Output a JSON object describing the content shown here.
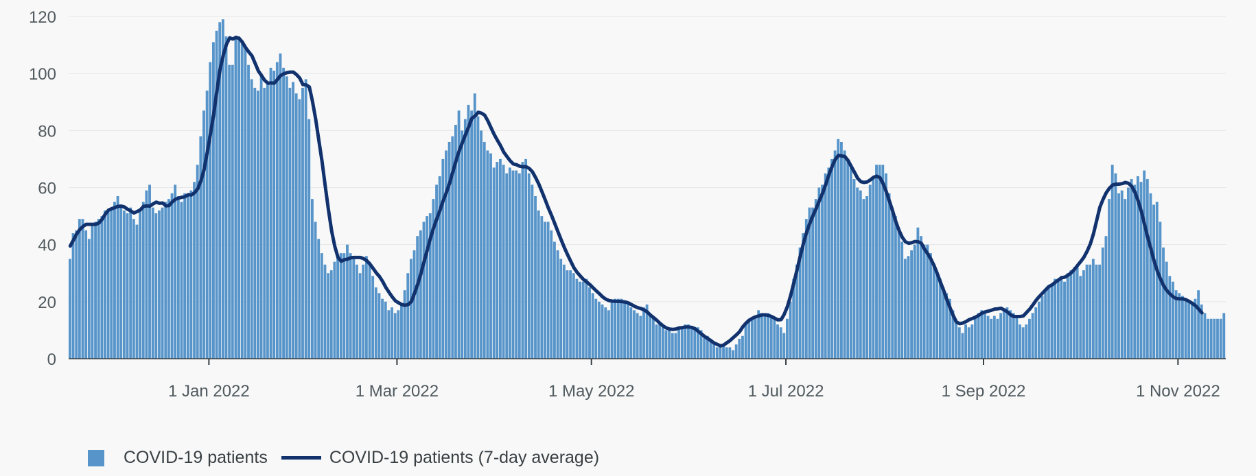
{
  "colors": {
    "bar": "#5694ca",
    "line": "#12326e",
    "grid": "#e6e6e6",
    "axis": "#505a5f",
    "background": "#f8f8f8"
  },
  "legend": {
    "bars": "COVID-19 patients",
    "line": "COVID-19 patients (7-day average)"
  },
  "chart_data": {
    "type": "bar",
    "title": "",
    "xlabel": "",
    "ylabel": "",
    "x_start": "2021-11-18",
    "x_ticks": [
      {
        "date": "2022-01-01",
        "label": "1 Jan 2022"
      },
      {
        "date": "2022-03-01",
        "label": "1 Mar 2022"
      },
      {
        "date": "2022-05-01",
        "label": "1 May 2022"
      },
      {
        "date": "2022-07-01",
        "label": "1 Jul 2022"
      },
      {
        "date": "2022-09-01",
        "label": "1 Sep 2022"
      },
      {
        "date": "2022-11-01",
        "label": "1 Nov 2022"
      }
    ],
    "ylim": [
      0,
      120
    ],
    "yticks": [
      0,
      20,
      40,
      60,
      80,
      100,
      120
    ],
    "grid": true,
    "legend_position": "bottom-left",
    "series": [
      {
        "name": "COVID-19 patients",
        "kind": "bar",
        "values": [
          35,
          44,
          45,
          49,
          49,
          45,
          42,
          47,
          48,
          49,
          50,
          52,
          52,
          53,
          55,
          57,
          53,
          52,
          51,
          53,
          49,
          47,
          52,
          55,
          59,
          61,
          53,
          51,
          52,
          53,
          55,
          56,
          58,
          61,
          57,
          55,
          58,
          57,
          59,
          62,
          68,
          78,
          87,
          94,
          104,
          111,
          115,
          118,
          119,
          113,
          103,
          103,
          113,
          113,
          111,
          109,
          103,
          98,
          95,
          94,
          99,
          95,
          97,
          102,
          101,
          104,
          107,
          102,
          99,
          95,
          97,
          93,
          91,
          95,
          98,
          84,
          56,
          48,
          42,
          37,
          33,
          30,
          31,
          34,
          36,
          37,
          37,
          40,
          37,
          36,
          33,
          30,
          33,
          36,
          34,
          29,
          25,
          23,
          21,
          20,
          17,
          18,
          16,
          17,
          19,
          24,
          30,
          35,
          38,
          43,
          45,
          48,
          50,
          51,
          56,
          61,
          64,
          70,
          73,
          76,
          78,
          82,
          87,
          80,
          84,
          89,
          87,
          93,
          85,
          80,
          76,
          73,
          72,
          67,
          69,
          70,
          68,
          65,
          67,
          66,
          66,
          65,
          69,
          70,
          65,
          61,
          57,
          52,
          50,
          48,
          48,
          45,
          41,
          38,
          35,
          33,
          31,
          31,
          30,
          28,
          27,
          27,
          28,
          25,
          23,
          21,
          20,
          19,
          18,
          17,
          20,
          21,
          21,
          21,
          20,
          20,
          18,
          17,
          16,
          15,
          18,
          19,
          15,
          14,
          12,
          12,
          11,
          10,
          10,
          9,
          9,
          11,
          11,
          12,
          12,
          11,
          11,
          11,
          10,
          8,
          8,
          7,
          6,
          4,
          5,
          5,
          4,
          4,
          3,
          5,
          7,
          8,
          12,
          14,
          14,
          15,
          17,
          16,
          15,
          16,
          15,
          14,
          12,
          11,
          9,
          14,
          20,
          28,
          33,
          39,
          44,
          49,
          53,
          53,
          56,
          60,
          61,
          65,
          67,
          70,
          73,
          77,
          76,
          73,
          70,
          67,
          63,
          60,
          59,
          56,
          57,
          61,
          64,
          68,
          68,
          68,
          65,
          58,
          53,
          50,
          45,
          41,
          35,
          36,
          38,
          40,
          46,
          43,
          40,
          40,
          37,
          33,
          30,
          28,
          25,
          23,
          21,
          17,
          13,
          11,
          9,
          12,
          11,
          12,
          15,
          16,
          17,
          16,
          15,
          14,
          15,
          14,
          16,
          17,
          18,
          17,
          16,
          15,
          12,
          11,
          12,
          14,
          16,
          18,
          20,
          22,
          24,
          25,
          26,
          28,
          28,
          29,
          27,
          30,
          31,
          32,
          32,
          29,
          31,
          33,
          33,
          35,
          33,
          33,
          39,
          43,
          56,
          68,
          65,
          58,
          59,
          56,
          60,
          63,
          61,
          64,
          62,
          66,
          63,
          58,
          54,
          55,
          48,
          39,
          34,
          29,
          27,
          24,
          23,
          22,
          21,
          20,
          19,
          21,
          24,
          19,
          16,
          14,
          14,
          14,
          14,
          14,
          16
        ]
      },
      {
        "name": "COVID-19 patients (7-day average)",
        "kind": "line",
        "values": [
          39.5,
          41.6,
          43.7,
          45.3,
          46.4,
          47.1,
          47.1,
          47.1,
          47.1,
          47.6,
          48.9,
          50.7,
          52.1,
          52.6,
          53.0,
          53.4,
          53.5,
          53.2,
          52.4,
          51.8,
          51.1,
          51.6,
          52.2,
          53.4,
          53.6,
          53.5,
          54.3,
          54.9,
          54.5,
          54.6,
          53.6,
          53.7,
          55.0,
          55.9,
          56.3,
          56.6,
          56.8,
          57.5,
          57.4,
          58.2,
          59.6,
          62.4,
          66.4,
          72.4,
          78.9,
          85.6,
          93.9,
          101.5,
          106.4,
          110.2,
          112.5,
          112.1,
          112.7,
          112.3,
          111.0,
          109.1,
          107.6,
          106.2,
          103.6,
          100.9,
          99.3,
          97.6,
          96.6,
          96.7,
          96.6,
          97.9,
          99.3,
          99.9,
          100.3,
          100.5,
          100.5,
          99.6,
          98.4,
          96.1,
          96.0,
          95.3,
          90.2,
          83.9,
          76.5,
          69.2,
          60.5,
          52.3,
          44.8,
          39.4,
          35.5,
          34.2,
          34.7,
          34.9,
          35.4,
          35.5,
          35.5,
          35.5,
          35.1,
          34.4,
          33.2,
          31.7,
          30.1,
          28.8,
          27.1,
          25.0,
          23.3,
          21.7,
          20.3,
          19.6,
          19.0,
          18.7,
          19.0,
          20.0,
          22.9,
          26.1,
          29.8,
          34.1,
          38.1,
          42.3,
          45.9,
          49.1,
          52.1,
          55.4,
          58.3,
          61.5,
          65.4,
          69.3,
          72.9,
          75.7,
          78.6,
          81.3,
          84.3,
          85.1,
          86.4,
          86.1,
          85.4,
          83.4,
          81.0,
          78.6,
          76.6,
          74.7,
          72.4,
          70.9,
          69.4,
          68.3,
          68.0,
          67.5,
          67.3,
          67.3,
          66.7,
          65.5,
          63.5,
          61.2,
          58.5,
          55.7,
          52.8,
          50.2,
          47.4,
          44.5,
          41.7,
          39.0,
          36.5,
          34.2,
          31.9,
          30.3,
          29.0,
          27.8,
          26.9,
          26.0,
          24.9,
          23.8,
          22.8,
          21.7,
          20.9,
          20.4,
          20.2,
          20.1,
          20.1,
          20.0,
          19.9,
          19.6,
          19.0,
          18.4,
          17.9,
          17.6,
          17.1,
          16.4,
          15.3,
          14.4,
          13.5,
          12.4,
          11.5,
          10.8,
          10.4,
          10.3,
          10.4,
          10.8,
          10.9,
          11.1,
          11.1,
          11.0,
          10.5,
          9.6,
          8.7,
          7.8,
          7.1,
          6.3,
          5.5,
          5.0,
          4.5,
          4.8,
          5.6,
          6.4,
          7.4,
          8.4,
          9.5,
          11.2,
          12.5,
          13.5,
          14.2,
          14.7,
          15.0,
          15.4,
          15.4,
          15.2,
          14.8,
          14.2,
          13.6,
          13.7,
          15.6,
          18.4,
          22.2,
          26.7,
          31.2,
          35.9,
          40.4,
          44.3,
          47.5,
          50.2,
          52.7,
          55.4,
          58.0,
          61.1,
          64.5,
          67.4,
          69.9,
          71.3,
          71.1,
          70.9,
          69.5,
          67.4,
          65.4,
          63.3,
          62.1,
          61.8,
          62.0,
          62.7,
          63.6,
          64.0,
          63.5,
          61.4,
          58.6,
          55.2,
          51.8,
          48.0,
          45.0,
          42.6,
          41.0,
          40.5,
          40.7,
          41.1,
          41.0,
          40.5,
          38.4,
          36.8,
          34.9,
          32.6,
          29.8,
          26.8,
          23.9,
          20.7,
          17.9,
          15.1,
          12.9,
          12.3,
          12.5,
          13.0,
          13.7,
          14.1,
          14.6,
          15.2,
          16.0,
          16.4,
          16.7,
          17.0,
          17.4,
          17.5,
          17.7,
          17.1,
          16.4,
          15.4,
          14.8,
          14.8,
          14.8,
          15.0,
          16.2,
          17.4,
          18.9,
          20.5,
          21.8,
          23.0,
          24.2,
          25.3,
          25.9,
          26.8,
          27.6,
          28.4,
          28.6,
          29.3,
          30.1,
          31.3,
          32.7,
          34.1,
          35.6,
          37.7,
          40.2,
          43.8,
          48.5,
          53.1,
          55.9,
          58.2,
          59.8,
          60.9,
          61.2,
          61.2,
          61.4,
          61.8,
          61.5,
          60.4,
          58.4,
          55.3,
          51.7,
          47.1,
          42.6,
          38.5,
          34.3,
          30.8,
          28.0,
          25.6,
          23.9,
          22.7,
          21.7,
          21.1,
          21.0,
          21.0,
          20.7,
          20.1,
          19.4,
          18.6,
          17.4,
          16.1
        ]
      }
    ]
  }
}
